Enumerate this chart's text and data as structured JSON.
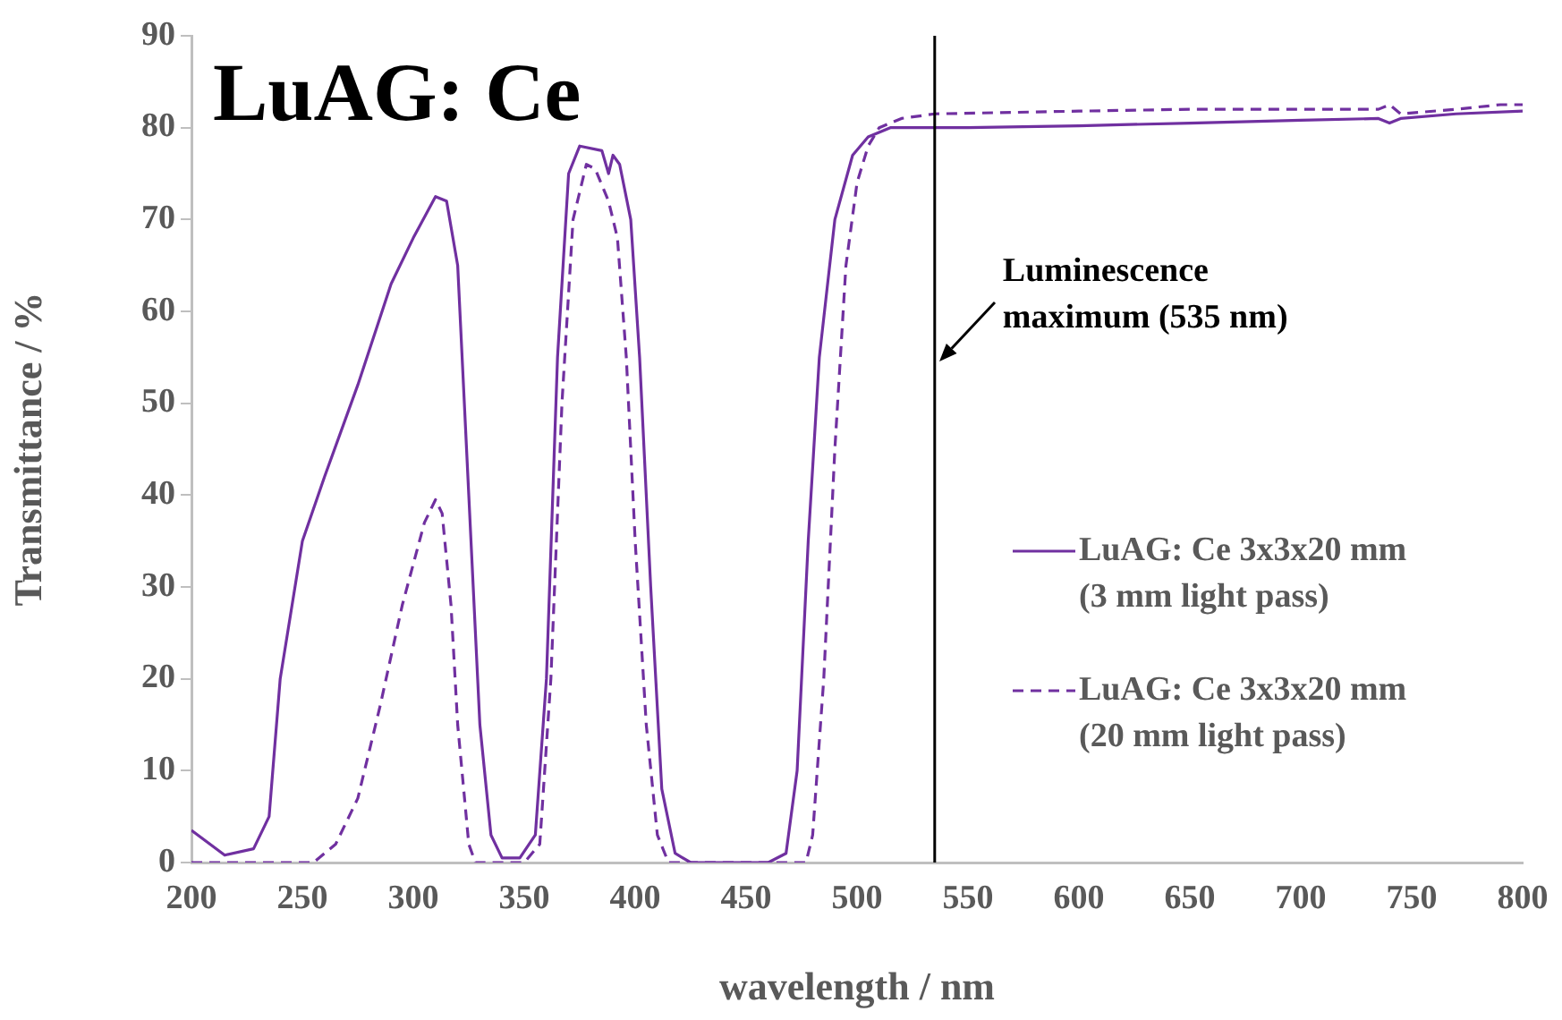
{
  "chart_data": {
    "type": "line",
    "title": "LuAG: Ce",
    "xlabel": "wavelength / nm",
    "ylabel": "Transmittance / %",
    "xlim": [
      200,
      800
    ],
    "xticks": [
      200,
      250,
      300,
      350,
      400,
      450,
      500,
      550,
      600,
      650,
      700,
      750,
      800
    ],
    "ylim": [
      0,
      90
    ],
    "yticks": [
      0,
      10,
      20,
      30,
      40,
      50,
      60,
      70,
      80,
      90
    ],
    "grid": false,
    "legend": "right",
    "marker": "none",
    "series": [
      {
        "name": "LuAG: Ce 3x3x20 mm (3 mm light pass)",
        "color": "#7030a0",
        "line_style": "solid",
        "x": [
          200,
          215,
          228,
          235,
          240,
          250,
          260,
          275,
          290,
          300,
          310,
          315,
          320,
          325,
          330,
          335,
          340,
          348,
          355,
          360,
          365,
          370,
          375,
          385,
          388,
          390,
          393,
          398,
          402,
          407,
          412,
          418,
          425,
          460,
          468,
          473,
          478,
          483,
          490,
          498,
          505,
          515,
          550,
          600,
          650,
          700,
          735,
          740,
          745,
          770,
          800
        ],
        "values": [
          3.5,
          0.8,
          1.5,
          5,
          20,
          35,
          42,
          52,
          63,
          68,
          72.5,
          72,
          65,
          40,
          15,
          3,
          0.5,
          0.5,
          3,
          20,
          55,
          75,
          78,
          77.5,
          75,
          77,
          76,
          70,
          55,
          30,
          8,
          1,
          0,
          0,
          1,
          10,
          35,
          55,
          70,
          77,
          79,
          80,
          80,
          80.2,
          80.5,
          80.8,
          81,
          80.5,
          81,
          81.5,
          81.8
        ]
      },
      {
        "name": "LuAG: Ce 3x3x20 mm (20 mm light pass)",
        "color": "#7030a0",
        "line_style": "dashed",
        "x": [
          200,
          255,
          265,
          275,
          285,
          295,
          305,
          310,
          313,
          317,
          320,
          325,
          328,
          350,
          357,
          362,
          367,
          372,
          378,
          382,
          388,
          392,
          396,
          400,
          405,
          410,
          415,
          477,
          480,
          485,
          490,
          495,
          500,
          505,
          510,
          520,
          535,
          600,
          650,
          700,
          735,
          740,
          745,
          770,
          790,
          800
        ],
        "values": [
          0,
          0,
          2,
          7,
          17,
          28,
          37,
          39.5,
          38,
          28,
          15,
          2,
          0,
          0,
          2,
          20,
          50,
          70,
          76,
          75.5,
          72,
          68,
          55,
          35,
          15,
          3,
          0,
          0,
          3,
          20,
          45,
          65,
          74,
          78,
          80,
          81,
          81.5,
          81.8,
          82,
          82,
          82,
          82.5,
          81.5,
          82,
          82.5,
          82.5
        ]
      }
    ],
    "ref_lines": [
      {
        "axis": "x",
        "value": 535,
        "label": "Luminescence maximum (535 nm)",
        "color": "#000000"
      }
    ]
  }
}
